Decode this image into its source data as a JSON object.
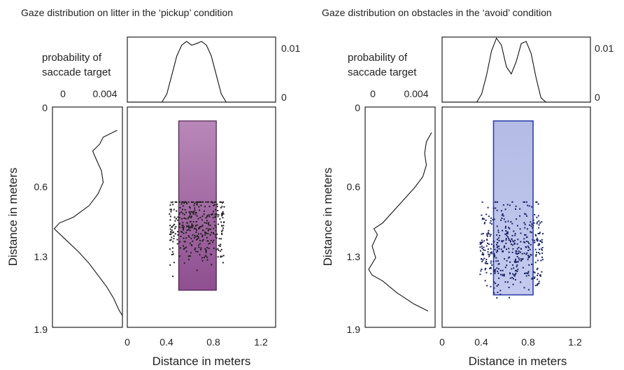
{
  "chart_data": [
    {
      "type": "scatter",
      "title": "Gaze distribution on litter in the ‘pickup’ condition",
      "xlabel": "Distance in meters",
      "ylabel": "Distance in meters",
      "xlim": [
        0,
        1.5
      ],
      "ylim": [
        0,
        1.9
      ],
      "x_ticks": [
        "0",
        "0.4",
        "0.8",
        "1.2"
      ],
      "y_ticks": [
        "0",
        "0.6",
        "1.3",
        "1.9"
      ],
      "grid": false,
      "target_box": {
        "x_range": [
          0.52,
          0.9
        ],
        "y_range": [
          0.12,
          1.58
        ],
        "color": "#9a5a9b"
      },
      "point_color": "#222222",
      "scatter_spec": {
        "n": 380,
        "x_range": [
          0.42,
          0.98
        ],
        "y_mean": 1.02,
        "y_sd": 0.22,
        "y_range": [
          0.82,
          1.66
        ],
        "seed": 11
      },
      "top_marginal": {
        "label_line1": "probability of",
        "label_line2": "saccade target",
        "ylim": [
          0,
          0.012
        ],
        "y_ticks": [
          "0.01",
          "0"
        ],
        "x": [
          0.0,
          0.35,
          0.4,
          0.45,
          0.5,
          0.55,
          0.6,
          0.65,
          0.7,
          0.75,
          0.8,
          0.85,
          0.9,
          0.95,
          1.0,
          1.05,
          1.5
        ],
        "y": [
          0.0,
          0.0,
          0.0015,
          0.005,
          0.0085,
          0.0105,
          0.0112,
          0.0105,
          0.0108,
          0.0112,
          0.0105,
          0.0085,
          0.005,
          0.0015,
          0.0,
          0.0,
          0.0
        ]
      },
      "left_marginal": {
        "xlim": [
          0.004,
          0
        ],
        "x_ticks": [
          "0",
          "0.004"
        ],
        "y": [
          0.2,
          0.26,
          0.32,
          0.38,
          0.45,
          0.55,
          0.65,
          0.75,
          0.85,
          0.95,
          1.0,
          1.05,
          1.15,
          1.25,
          1.35,
          1.45,
          1.55,
          1.65,
          1.75,
          1.8
        ],
        "prob": [
          0.0003,
          0.0011,
          0.0013,
          0.0017,
          0.0015,
          0.0012,
          0.0011,
          0.0014,
          0.0019,
          0.0028,
          0.0036,
          0.0039,
          0.0032,
          0.0025,
          0.0019,
          0.0014,
          0.0009,
          0.0005,
          0.0002,
          0.0
        ]
      }
    },
    {
      "type": "scatter",
      "title": "Gaze distribution on obstacles in the ‘avoid’ condition",
      "xlabel": "Distance in meters",
      "ylabel": "Distance in meters",
      "xlim": [
        0,
        1.5
      ],
      "ylim": [
        0,
        1.9
      ],
      "x_ticks": [
        "0",
        "0.4",
        "0.8",
        "1.2"
      ],
      "y_ticks": [
        "0",
        "0.6",
        "1.3",
        "1.9"
      ],
      "grid": false,
      "target_box": {
        "x_range": [
          0.52,
          0.92
        ],
        "y_range": [
          0.12,
          1.62
        ],
        "color": "#8a96d6"
      },
      "point_color": "#1a2466",
      "scatter_spec": {
        "n": 430,
        "x_range": [
          0.38,
          1.02
        ],
        "y_mean": 1.22,
        "y_sd": 0.26,
        "y_range": [
          0.82,
          1.74
        ],
        "seed": 29
      },
      "top_marginal": {
        "label_line1": "probability of",
        "label_line2": "saccade target",
        "ylim": [
          0,
          0.012
        ],
        "y_ticks": [
          "0.01",
          "0"
        ],
        "x": [
          0.0,
          0.35,
          0.4,
          0.45,
          0.5,
          0.55,
          0.6,
          0.65,
          0.7,
          0.75,
          0.8,
          0.85,
          0.9,
          0.95,
          1.0,
          1.05,
          1.5
        ],
        "y": [
          0.0,
          0.0,
          0.0015,
          0.005,
          0.0095,
          0.0118,
          0.0105,
          0.0065,
          0.0052,
          0.0075,
          0.0108,
          0.0112,
          0.009,
          0.0045,
          0.0008,
          0.0,
          0.0
        ]
      },
      "left_marginal": {
        "xlim": [
          0.004,
          0
        ],
        "x_ticks": [
          "0",
          "0.004"
        ],
        "y": [
          0.22,
          0.3,
          0.4,
          0.5,
          0.6,
          0.7,
          0.8,
          0.9,
          1.0,
          1.05,
          1.1,
          1.2,
          1.3,
          1.4,
          1.45,
          1.5,
          1.6,
          1.7,
          1.76
        ],
        "prob": [
          0.0002,
          0.0005,
          0.0006,
          0.0005,
          0.0007,
          0.0012,
          0.0018,
          0.0024,
          0.003,
          0.0035,
          0.0033,
          0.0036,
          0.0034,
          0.0038,
          0.0036,
          0.003,
          0.0022,
          0.0012,
          0.0004
        ]
      }
    }
  ]
}
